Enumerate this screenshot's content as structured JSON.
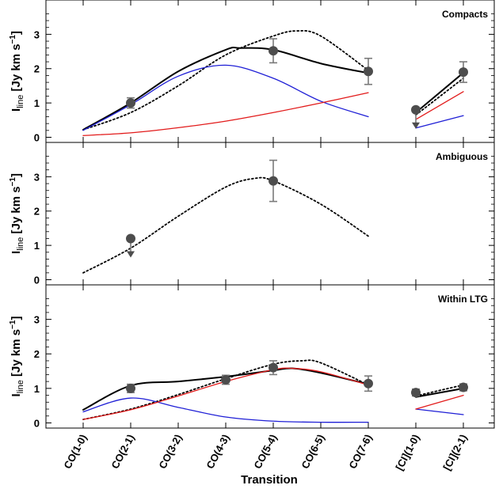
{
  "chart_data": {
    "type": "line",
    "xlabel": "Transition",
    "ylabel": {
      "main": "I",
      "sub": "line",
      "unit": " [Jy km s",
      "sup": "−1",
      "close": "]"
    },
    "categories": [
      "CO(1-0)",
      "CO(2-1)",
      "CO(3-2)",
      "CO(4-3)",
      "CO(5-4)",
      "CO(6-5)",
      "CO(7-6)",
      "[CI](1-0)",
      "[CI](2-1)"
    ],
    "ylim": [
      -0.15,
      4.0
    ],
    "yticks": [
      "0",
      "1",
      "2",
      "3"
    ],
    "colors": {
      "total": "#000000",
      "blue": "#1f1fd6",
      "red": "#e21b1b",
      "marker": "#4d4d4d",
      "errorbar": "#7a7a7a"
    },
    "panels": [
      {
        "title": "Compacts",
        "series": [
          {
            "style": "dotted",
            "color": "#000000",
            "co_x": [
              1,
              2,
              3,
              4,
              5,
              5.5,
              6,
              7
            ],
            "co_y": [
              0.22,
              0.72,
              1.5,
              2.4,
              2.95,
              3.1,
              2.95,
              1.95
            ],
            "ci_x": [
              8,
              9
            ],
            "ci_y": [
              0.65,
              1.72
            ]
          },
          {
            "style": "solid",
            "color": "#000000",
            "co_x": [
              1,
              2,
              3,
              4,
              4.3,
              5,
              6,
              7
            ],
            "co_y": [
              0.22,
              1.0,
              1.92,
              2.55,
              2.6,
              2.55,
              2.15,
              1.87
            ],
            "ci_x": [
              8,
              9
            ],
            "ci_y": [
              0.72,
              1.88
            ]
          },
          {
            "style": "solid",
            "color": "#1f1fd6",
            "co_x": [
              1,
              2,
              3,
              4,
              5,
              6,
              7
            ],
            "co_y": [
              0.2,
              0.95,
              1.78,
              2.1,
              1.72,
              1.05,
              0.6
            ],
            "ci_x": [
              8,
              9
            ],
            "ci_y": [
              0.27,
              0.63
            ]
          },
          {
            "style": "solid",
            "color": "#e21b1b",
            "co_x": [
              1,
              2,
              3,
              4,
              5,
              6,
              7
            ],
            "co_y": [
              0.05,
              0.13,
              0.28,
              0.47,
              0.72,
              1.0,
              1.3
            ],
            "ci_x": [
              8,
              9
            ],
            "ci_y": [
              0.52,
              1.33
            ]
          }
        ],
        "points": [
          {
            "x": 2,
            "y": 1.0,
            "err": 0.15
          },
          {
            "x": 5,
            "y": 2.52,
            "err": 0.35
          },
          {
            "x": 7,
            "y": 1.92,
            "err": 0.38
          },
          {
            "x": 8,
            "y": 0.8,
            "upper_limit": true
          },
          {
            "x": 9,
            "y": 1.9,
            "err": 0.3
          }
        ]
      },
      {
        "title": "Ambiguous",
        "series": [
          {
            "style": "dotted",
            "color": "#000000",
            "co_x": [
              1,
              2,
              3,
              4,
              4.6,
              5,
              6,
              7
            ],
            "co_y": [
              0.2,
              0.92,
              1.85,
              2.7,
              2.95,
              2.88,
              2.2,
              1.27
            ],
            "ci_x": [],
            "ci_y": []
          }
        ],
        "points": [
          {
            "x": 2,
            "y": 1.2,
            "upper_limit": true
          },
          {
            "x": 5,
            "y": 2.88,
            "err": 0.6
          }
        ]
      },
      {
        "title": "Within LTG",
        "series": [
          {
            "style": "dotted",
            "color": "#000000",
            "co_x": [
              1,
              2,
              3,
              4,
              5,
              5.6,
              6,
              7
            ],
            "co_y": [
              0.1,
              0.4,
              0.82,
              1.28,
              1.7,
              1.8,
              1.74,
              1.1
            ],
            "ci_x": [
              8,
              9
            ],
            "ci_y": [
              0.78,
              1.1
            ]
          },
          {
            "style": "solid",
            "color": "#000000",
            "co_x": [
              1,
              2,
              3,
              4,
              5,
              5.4,
              6,
              7
            ],
            "co_y": [
              0.38,
              1.08,
              1.2,
              1.34,
              1.52,
              1.58,
              1.45,
              1.12
            ],
            "ci_x": [
              8,
              9
            ],
            "ci_y": [
              0.75,
              1.0
            ]
          },
          {
            "style": "solid",
            "color": "#1f1fd6",
            "co_x": [
              1,
              2,
              3,
              4,
              5,
              6,
              7
            ],
            "co_y": [
              0.32,
              0.72,
              0.45,
              0.17,
              0.05,
              0.02,
              0.02
            ],
            "ci_x": [
              8,
              9
            ],
            "ci_y": [
              0.4,
              0.24
            ]
          },
          {
            "style": "solid",
            "color": "#e21b1b",
            "co_x": [
              1,
              2,
              3,
              4,
              5,
              5.4,
              6,
              7
            ],
            "co_y": [
              0.1,
              0.38,
              0.78,
              1.2,
              1.54,
              1.58,
              1.48,
              1.1
            ],
            "ci_x": [
              8,
              9
            ],
            "ci_y": [
              0.4,
              0.8
            ]
          }
        ],
        "points": [
          {
            "x": 2,
            "y": 1.0,
            "err": 0.12
          },
          {
            "x": 4,
            "y": 1.25,
            "err": 0.13
          },
          {
            "x": 5,
            "y": 1.6,
            "err": 0.2
          },
          {
            "x": 7,
            "y": 1.14,
            "err": 0.22
          },
          {
            "x": 8,
            "y": 0.88,
            "err": 0.1
          },
          {
            "x": 9,
            "y": 1.03,
            "err": 0.1
          }
        ]
      }
    ]
  }
}
